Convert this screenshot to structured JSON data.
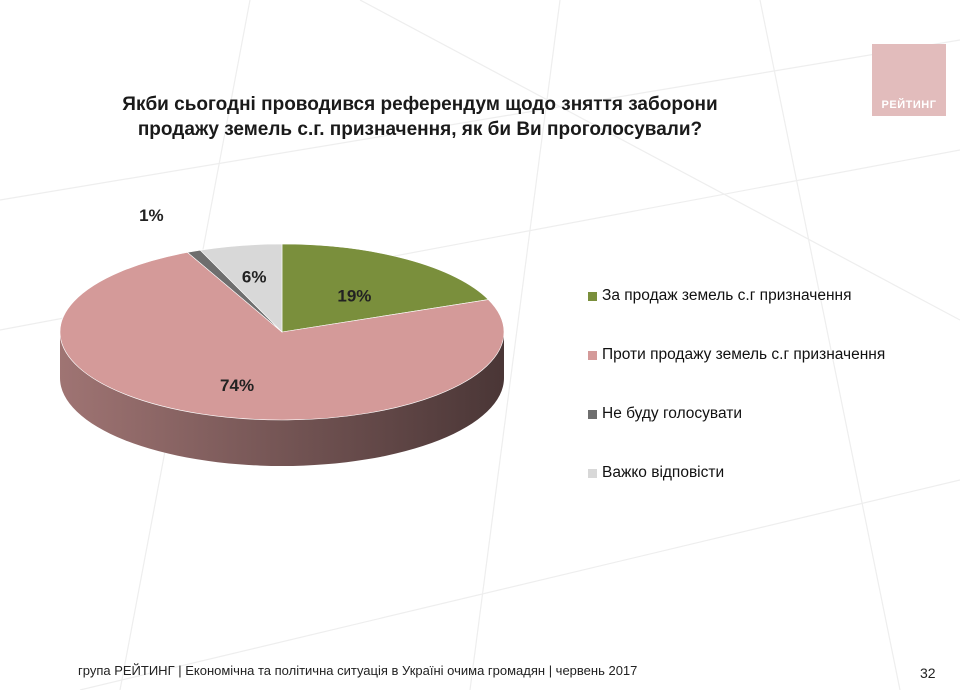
{
  "title_line1": "Якби сьогодні проводився референдум щодо зняття заборони",
  "title_line2": "продажу земель с.г. призначення, як би Ви проголосували?",
  "logo_text": "РЕЙТИНГ",
  "colors": {
    "for": "#7a8f3c",
    "against": "#d49a99",
    "wont_vote": "#6e6e6e",
    "hard_to_say": "#d8d8d8"
  },
  "chart_data": {
    "type": "pie",
    "title": "Якби сьогодні проводився референдум щодо зняття заборони продажу земель с.г. призначення, як би Ви проголосували?",
    "categories": [
      "За продаж земель с.г призначення",
      "Проти продажу земель с.г призначення",
      "Не буду голосувати",
      "Важко відповісти"
    ],
    "values": [
      19,
      74,
      1,
      6
    ],
    "value_labels": [
      "19%",
      "74%",
      "1%",
      "6%"
    ],
    "legend": "right"
  },
  "footer_text": "група РЕЙТИНГ  |  Економічна та політична ситуація в Україні очима громадян  |  червень 2017",
  "page_number": "32"
}
